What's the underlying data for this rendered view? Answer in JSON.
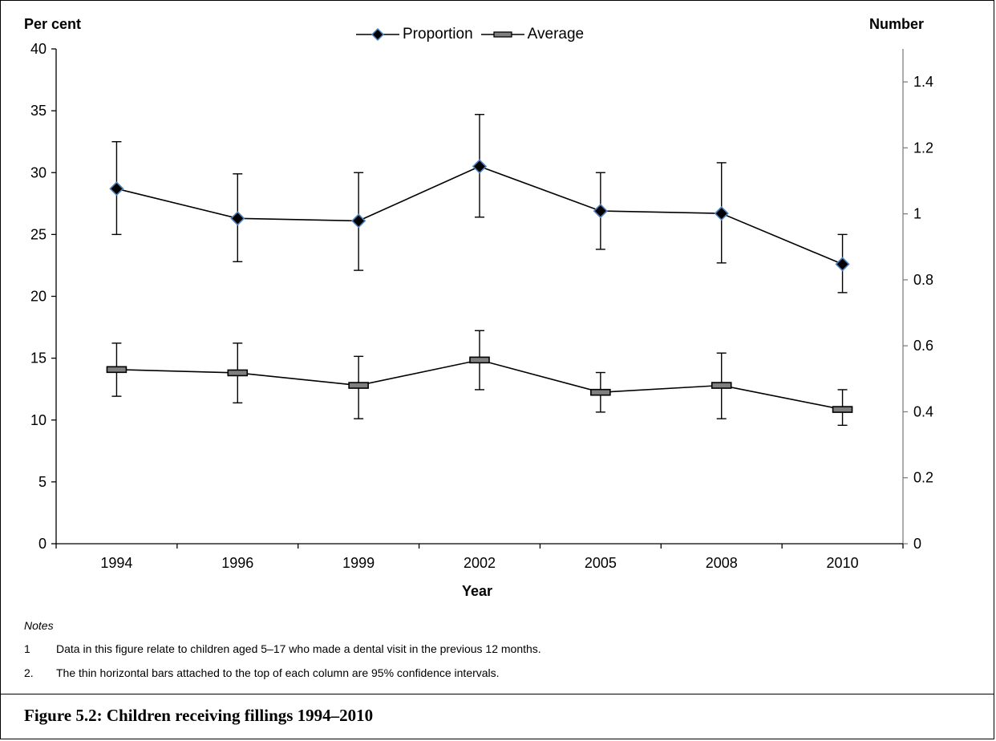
{
  "chart_data": {
    "type": "line",
    "title": "",
    "xlabel": "Year",
    "ylabel_left": "Per cent",
    "ylabel_right": "Number",
    "categories": [
      "1994",
      "1996",
      "1999",
      "2002",
      "2005",
      "2008",
      "2010"
    ],
    "ylim_left": [
      0,
      40
    ],
    "yticks_left": [
      "0",
      "5",
      "10",
      "15",
      "20",
      "25",
      "30",
      "35",
      "40"
    ],
    "ylim_right": [
      0,
      1.5
    ],
    "yticks_right": [
      "0",
      "0.2",
      "0.4",
      "0.6",
      "0.8",
      "1",
      "1.2",
      "1.4"
    ],
    "legend_position": "top-center",
    "grid": false,
    "series": [
      {
        "name": "Proportion",
        "axis": "left",
        "marker": "diamond",
        "values": [
          28.7,
          26.3,
          26.1,
          30.5,
          26.9,
          26.7,
          22.6
        ],
        "ci_low": [
          25.0,
          22.8,
          22.1,
          26.4,
          23.8,
          22.7,
          20.3
        ],
        "ci_high": [
          32.5,
          29.9,
          30.0,
          34.7,
          30.0,
          30.8,
          25.0
        ]
      },
      {
        "name": "Average",
        "axis": "right",
        "marker": "dash",
        "values": [
          0.528,
          0.518,
          0.48,
          0.557,
          0.459,
          0.48,
          0.407
        ],
        "ci_low": [
          0.447,
          0.427,
          0.379,
          0.467,
          0.399,
          0.379,
          0.359
        ],
        "ci_high": [
          0.608,
          0.608,
          0.568,
          0.646,
          0.519,
          0.578,
          0.467
        ]
      }
    ],
    "colors": {
      "line": "#000000",
      "diamond_edge": "#4f81bd",
      "dash_fill": "#7f7f7f",
      "right_axis": "#808080"
    }
  },
  "notes": {
    "title": "Notes",
    "items": [
      {
        "num": "1",
        "text": "Data in this figure relate to children aged 5–17 who made a dental visit in the previous 12 months."
      },
      {
        "num": "2.",
        "text": "The thin horizontal bars attached to the top of each column are 95% confidence intervals."
      }
    ]
  },
  "caption": "Figure 5.2: Children receiving fillings 1994–2010"
}
